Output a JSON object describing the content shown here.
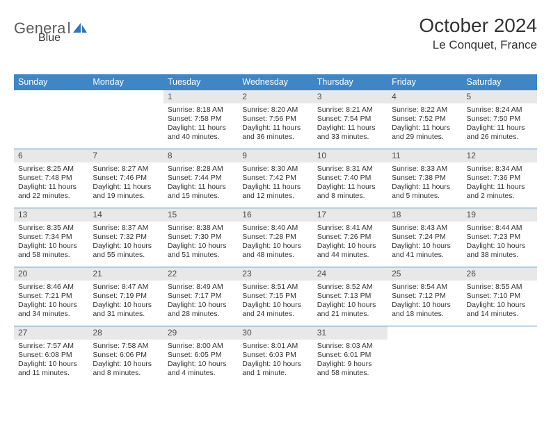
{
  "brand": {
    "general": "Genera",
    "l": "l",
    "blue": "Blue"
  },
  "title": {
    "month": "October 2024",
    "location": "Le Conquet, France"
  },
  "palette": {
    "header_bg": "#3f86c6",
    "daynum_bg": "#e8e8e8",
    "row_border": "#3f86c6",
    "text": "#333333",
    "brand_gray": "#5b5b5b",
    "brand_blue": "#2f77b6"
  },
  "layout": {
    "week_header_fontsize": 12.5,
    "title_fontsize": 28,
    "location_fontsize": 17,
    "body_fontsize": 10.5,
    "daynum_fontsize": 12
  },
  "weekdays": [
    "Sunday",
    "Monday",
    "Tuesday",
    "Wednesday",
    "Thursday",
    "Friday",
    "Saturday"
  ],
  "weeks": [
    [
      null,
      null,
      {
        "n": "1",
        "sunrise": "8:18 AM",
        "sunset": "7:58 PM",
        "day_h": "11",
        "day_m": "40"
      },
      {
        "n": "2",
        "sunrise": "8:20 AM",
        "sunset": "7:56 PM",
        "day_h": "11",
        "day_m": "36"
      },
      {
        "n": "3",
        "sunrise": "8:21 AM",
        "sunset": "7:54 PM",
        "day_h": "11",
        "day_m": "33"
      },
      {
        "n": "4",
        "sunrise": "8:22 AM",
        "sunset": "7:52 PM",
        "day_h": "11",
        "day_m": "29"
      },
      {
        "n": "5",
        "sunrise": "8:24 AM",
        "sunset": "7:50 PM",
        "day_h": "11",
        "day_m": "26"
      }
    ],
    [
      {
        "n": "6",
        "sunrise": "8:25 AM",
        "sunset": "7:48 PM",
        "day_h": "11",
        "day_m": "22"
      },
      {
        "n": "7",
        "sunrise": "8:27 AM",
        "sunset": "7:46 PM",
        "day_h": "11",
        "day_m": "19"
      },
      {
        "n": "8",
        "sunrise": "8:28 AM",
        "sunset": "7:44 PM",
        "day_h": "11",
        "day_m": "15"
      },
      {
        "n": "9",
        "sunrise": "8:30 AM",
        "sunset": "7:42 PM",
        "day_h": "11",
        "day_m": "12"
      },
      {
        "n": "10",
        "sunrise": "8:31 AM",
        "sunset": "7:40 PM",
        "day_h": "11",
        "day_m": "8"
      },
      {
        "n": "11",
        "sunrise": "8:33 AM",
        "sunset": "7:38 PM",
        "day_h": "11",
        "day_m": "5"
      },
      {
        "n": "12",
        "sunrise": "8:34 AM",
        "sunset": "7:36 PM",
        "day_h": "11",
        "day_m": "2"
      }
    ],
    [
      {
        "n": "13",
        "sunrise": "8:35 AM",
        "sunset": "7:34 PM",
        "day_h": "10",
        "day_m": "58"
      },
      {
        "n": "14",
        "sunrise": "8:37 AM",
        "sunset": "7:32 PM",
        "day_h": "10",
        "day_m": "55"
      },
      {
        "n": "15",
        "sunrise": "8:38 AM",
        "sunset": "7:30 PM",
        "day_h": "10",
        "day_m": "51"
      },
      {
        "n": "16",
        "sunrise": "8:40 AM",
        "sunset": "7:28 PM",
        "day_h": "10",
        "day_m": "48"
      },
      {
        "n": "17",
        "sunrise": "8:41 AM",
        "sunset": "7:26 PM",
        "day_h": "10",
        "day_m": "44"
      },
      {
        "n": "18",
        "sunrise": "8:43 AM",
        "sunset": "7:24 PM",
        "day_h": "10",
        "day_m": "41"
      },
      {
        "n": "19",
        "sunrise": "8:44 AM",
        "sunset": "7:23 PM",
        "day_h": "10",
        "day_m": "38"
      }
    ],
    [
      {
        "n": "20",
        "sunrise": "8:46 AM",
        "sunset": "7:21 PM",
        "day_h": "10",
        "day_m": "34"
      },
      {
        "n": "21",
        "sunrise": "8:47 AM",
        "sunset": "7:19 PM",
        "day_h": "10",
        "day_m": "31"
      },
      {
        "n": "22",
        "sunrise": "8:49 AM",
        "sunset": "7:17 PM",
        "day_h": "10",
        "day_m": "28"
      },
      {
        "n": "23",
        "sunrise": "8:51 AM",
        "sunset": "7:15 PM",
        "day_h": "10",
        "day_m": "24"
      },
      {
        "n": "24",
        "sunrise": "8:52 AM",
        "sunset": "7:13 PM",
        "day_h": "10",
        "day_m": "21"
      },
      {
        "n": "25",
        "sunrise": "8:54 AM",
        "sunset": "7:12 PM",
        "day_h": "10",
        "day_m": "18"
      },
      {
        "n": "26",
        "sunrise": "8:55 AM",
        "sunset": "7:10 PM",
        "day_h": "10",
        "day_m": "14"
      }
    ],
    [
      {
        "n": "27",
        "sunrise": "7:57 AM",
        "sunset": "6:08 PM",
        "day_h": "10",
        "day_m": "11"
      },
      {
        "n": "28",
        "sunrise": "7:58 AM",
        "sunset": "6:06 PM",
        "day_h": "10",
        "day_m": "8"
      },
      {
        "n": "29",
        "sunrise": "8:00 AM",
        "sunset": "6:05 PM",
        "day_h": "10",
        "day_m": "4"
      },
      {
        "n": "30",
        "sunrise": "8:01 AM",
        "sunset": "6:03 PM",
        "day_h": "10",
        "day_m": "1"
      },
      {
        "n": "31",
        "sunrise": "8:03 AM",
        "sunset": "6:01 PM",
        "day_h": "9",
        "day_m": "58"
      },
      null,
      null
    ]
  ],
  "labels": {
    "sunrise": "Sunrise:",
    "sunset": "Sunset:",
    "daylight_prefix": "Daylight:",
    "hours": "hours",
    "and": "and",
    "minute_singular": "minute.",
    "minutes": "minutes."
  }
}
